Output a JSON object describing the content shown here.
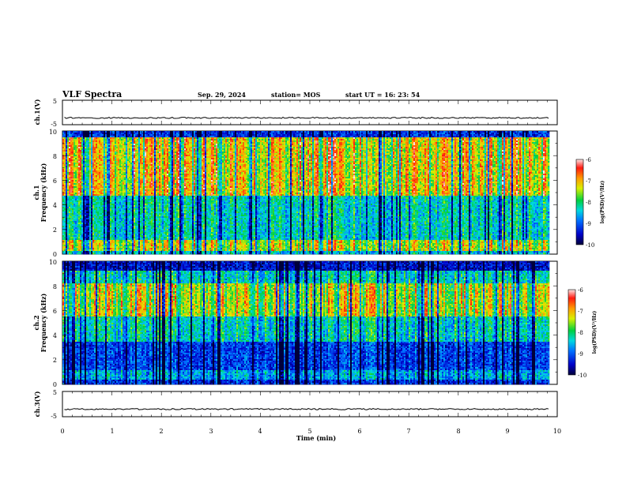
{
  "header": {
    "title": "VLF Spectra",
    "date": "Sep. 29, 2024",
    "station": "station= MOS",
    "start": "start UT =  16: 23: 54"
  },
  "chart_data": [
    {
      "type": "line",
      "name": "ch1-waveform",
      "ylabel": "ch.1(V)",
      "ylim": [
        -5,
        5
      ],
      "yticks": [
        "5",
        "-5"
      ],
      "level": -2.2,
      "xlim": [
        0,
        10
      ]
    },
    {
      "type": "heatmap",
      "name": "ch1-spectrogram",
      "ylabel_top": "ch.1",
      "ylabel": "Frequency (kHz)",
      "ylim": [
        0,
        10
      ],
      "yticks": [
        "0",
        "2",
        "4",
        "6",
        "8",
        "10"
      ],
      "xlim": [
        0,
        10
      ],
      "data_end_min": 9.85,
      "colorbar": {
        "label": "log(PSD)(V²/Hz)",
        "range": [
          -10,
          -6
        ],
        "ticks": [
          "-6",
          "-7",
          "-8",
          "-9",
          "-10"
        ]
      }
    },
    {
      "type": "heatmap",
      "name": "ch2-spectrogram",
      "ylabel_top": "ch.2",
      "ylabel": "Frequency (kHz)",
      "ylim": [
        0,
        10
      ],
      "yticks": [
        "0",
        "2",
        "4",
        "6",
        "8",
        "10"
      ],
      "xlim": [
        0,
        10
      ],
      "data_end_min": 9.85,
      "colorbar": {
        "label": "log(PSD)(V²/Hz)",
        "range": [
          -10,
          -6
        ],
        "ticks": [
          "-6",
          "-7",
          "-8",
          "-9",
          "-10"
        ]
      }
    },
    {
      "type": "line",
      "name": "ch3-waveform",
      "ylabel": "ch.3(V)",
      "ylim": [
        -5,
        5
      ],
      "yticks": [
        "5",
        "-5"
      ],
      "level": -2.0,
      "xlim": [
        0,
        10
      ]
    }
  ],
  "xaxis": {
    "label": "Time (min)",
    "ticks": [
      "0",
      "1",
      "2",
      "3",
      "4",
      "5",
      "6",
      "7",
      "8",
      "9",
      "10"
    ]
  },
  "colors": {
    "low": "#000060",
    "mid": "#00d060",
    "high": "#ff2010"
  }
}
